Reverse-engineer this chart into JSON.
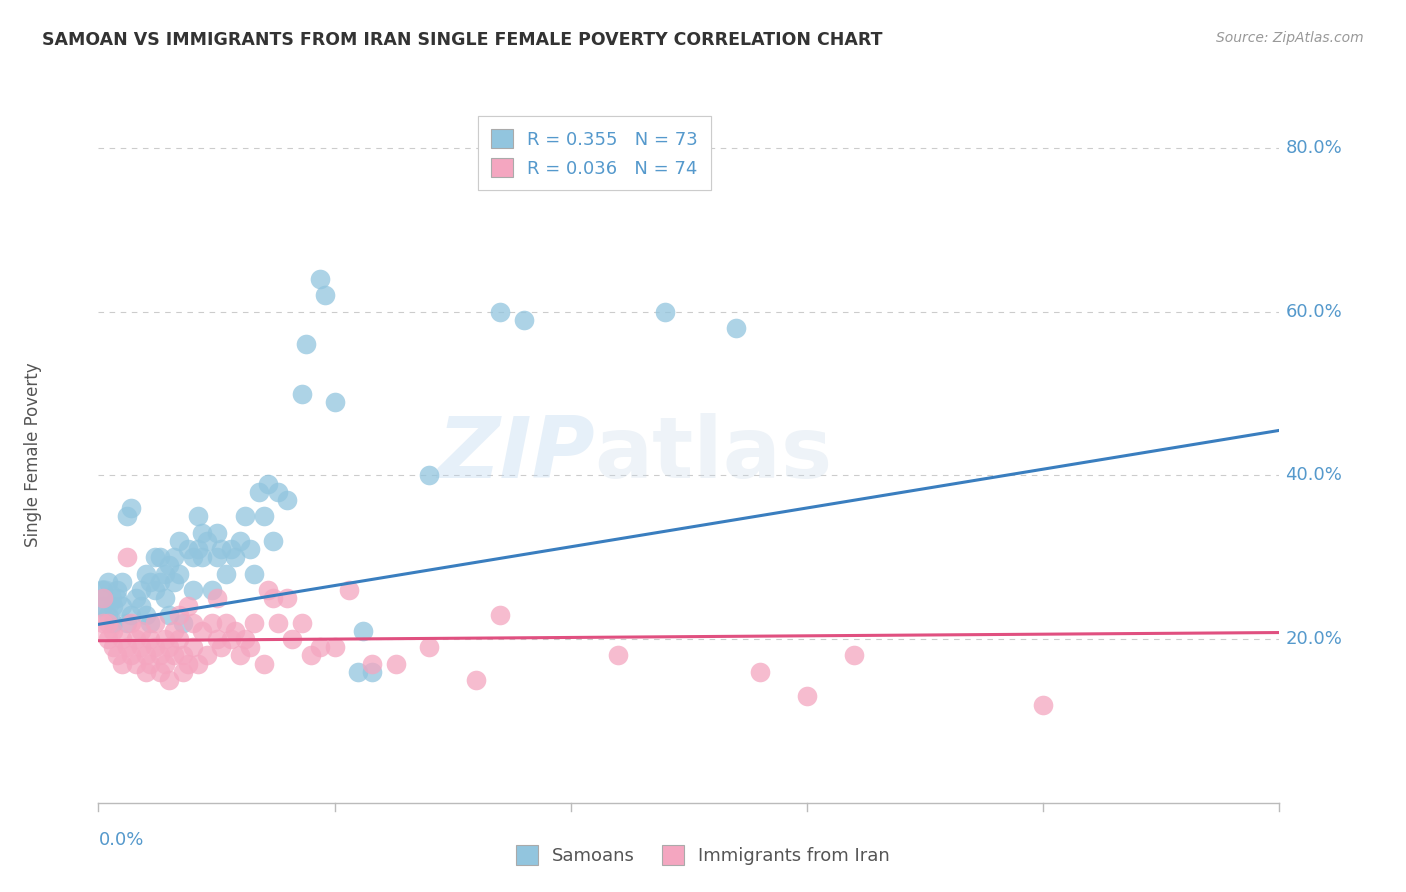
{
  "title": "SAMOAN VS IMMIGRANTS FROM IRAN SINGLE FEMALE POVERTY CORRELATION CHART",
  "source": "Source: ZipAtlas.com",
  "ylabel": "Single Female Poverty",
  "legend_samoans": "Samoans",
  "legend_iran": "Immigrants from Iran",
  "watermark_zip": "ZIP",
  "watermark_atlas": "atlas",
  "blue_color": "#92c5de",
  "pink_color": "#f4a6c0",
  "trendline_blue": "#3a7ebf",
  "trendline_pink": "#e05080",
  "background_color": "#ffffff",
  "grid_color": "#cccccc",
  "axis_label_color": "#5599cc",
  "title_color": "#333333",
  "source_color": "#999999",
  "xmin": 0.0,
  "xmax": 0.25,
  "ymin": 0.0,
  "ymax": 0.85,
  "blue_R": 0.355,
  "blue_N": 73,
  "pink_R": 0.036,
  "pink_N": 74,
  "blue_trendline_x": [
    0.0,
    0.25
  ],
  "blue_trendline_y": [
    0.218,
    0.455
  ],
  "pink_trendline_x": [
    0.0,
    0.25
  ],
  "pink_trendline_y": [
    0.198,
    0.208
  ],
  "blue_scatter": [
    [
      0.001,
      0.25
    ],
    [
      0.001,
      0.24
    ],
    [
      0.001,
      0.26
    ],
    [
      0.002,
      0.23
    ],
    [
      0.002,
      0.27
    ],
    [
      0.003,
      0.24
    ],
    [
      0.003,
      0.22
    ],
    [
      0.004,
      0.25
    ],
    [
      0.004,
      0.26
    ],
    [
      0.005,
      0.24
    ],
    [
      0.005,
      0.27
    ],
    [
      0.006,
      0.22
    ],
    [
      0.006,
      0.35
    ],
    [
      0.007,
      0.36
    ],
    [
      0.007,
      0.23
    ],
    [
      0.008,
      0.25
    ],
    [
      0.009,
      0.24
    ],
    [
      0.009,
      0.26
    ],
    [
      0.01,
      0.23
    ],
    [
      0.01,
      0.28
    ],
    [
      0.011,
      0.22
    ],
    [
      0.011,
      0.27
    ],
    [
      0.012,
      0.3
    ],
    [
      0.012,
      0.26
    ],
    [
      0.013,
      0.3
    ],
    [
      0.013,
      0.27
    ],
    [
      0.014,
      0.25
    ],
    [
      0.014,
      0.28
    ],
    [
      0.015,
      0.29
    ],
    [
      0.015,
      0.23
    ],
    [
      0.016,
      0.3
    ],
    [
      0.016,
      0.27
    ],
    [
      0.017,
      0.32
    ],
    [
      0.017,
      0.28
    ],
    [
      0.018,
      0.22
    ],
    [
      0.019,
      0.31
    ],
    [
      0.02,
      0.3
    ],
    [
      0.02,
      0.26
    ],
    [
      0.021,
      0.35
    ],
    [
      0.021,
      0.31
    ],
    [
      0.022,
      0.33
    ],
    [
      0.022,
      0.3
    ],
    [
      0.023,
      0.32
    ],
    [
      0.024,
      0.26
    ],
    [
      0.025,
      0.33
    ],
    [
      0.025,
      0.3
    ],
    [
      0.026,
      0.31
    ],
    [
      0.027,
      0.28
    ],
    [
      0.028,
      0.31
    ],
    [
      0.029,
      0.3
    ],
    [
      0.03,
      0.32
    ],
    [
      0.031,
      0.35
    ],
    [
      0.032,
      0.31
    ],
    [
      0.033,
      0.28
    ],
    [
      0.034,
      0.38
    ],
    [
      0.035,
      0.35
    ],
    [
      0.036,
      0.39
    ],
    [
      0.037,
      0.32
    ],
    [
      0.038,
      0.38
    ],
    [
      0.04,
      0.37
    ],
    [
      0.043,
      0.5
    ],
    [
      0.044,
      0.56
    ],
    [
      0.047,
      0.64
    ],
    [
      0.048,
      0.62
    ],
    [
      0.05,
      0.49
    ],
    [
      0.055,
      0.16
    ],
    [
      0.056,
      0.21
    ],
    [
      0.058,
      0.16
    ],
    [
      0.07,
      0.4
    ],
    [
      0.085,
      0.6
    ],
    [
      0.09,
      0.59
    ],
    [
      0.12,
      0.6
    ],
    [
      0.135,
      0.58
    ]
  ],
  "pink_scatter": [
    [
      0.001,
      0.25
    ],
    [
      0.002,
      0.22
    ],
    [
      0.002,
      0.2
    ],
    [
      0.003,
      0.19
    ],
    [
      0.003,
      0.21
    ],
    [
      0.004,
      0.18
    ],
    [
      0.005,
      0.17
    ],
    [
      0.005,
      0.2
    ],
    [
      0.006,
      0.19
    ],
    [
      0.006,
      0.3
    ],
    [
      0.007,
      0.22
    ],
    [
      0.007,
      0.18
    ],
    [
      0.008,
      0.2
    ],
    [
      0.008,
      0.17
    ],
    [
      0.009,
      0.21
    ],
    [
      0.009,
      0.19
    ],
    [
      0.01,
      0.16
    ],
    [
      0.01,
      0.18
    ],
    [
      0.011,
      0.2
    ],
    [
      0.011,
      0.17
    ],
    [
      0.012,
      0.19
    ],
    [
      0.012,
      0.22
    ],
    [
      0.013,
      0.18
    ],
    [
      0.013,
      0.16
    ],
    [
      0.014,
      0.2
    ],
    [
      0.014,
      0.17
    ],
    [
      0.015,
      0.15
    ],
    [
      0.015,
      0.19
    ],
    [
      0.016,
      0.21
    ],
    [
      0.016,
      0.18
    ],
    [
      0.017,
      0.2
    ],
    [
      0.017,
      0.23
    ],
    [
      0.018,
      0.18
    ],
    [
      0.018,
      0.16
    ],
    [
      0.019,
      0.17
    ],
    [
      0.019,
      0.24
    ],
    [
      0.02,
      0.22
    ],
    [
      0.02,
      0.19
    ],
    [
      0.021,
      0.17
    ],
    [
      0.022,
      0.21
    ],
    [
      0.023,
      0.18
    ],
    [
      0.024,
      0.22
    ],
    [
      0.025,
      0.2
    ],
    [
      0.025,
      0.25
    ],
    [
      0.026,
      0.19
    ],
    [
      0.027,
      0.22
    ],
    [
      0.028,
      0.2
    ],
    [
      0.029,
      0.21
    ],
    [
      0.03,
      0.18
    ],
    [
      0.031,
      0.2
    ],
    [
      0.032,
      0.19
    ],
    [
      0.033,
      0.22
    ],
    [
      0.035,
      0.17
    ],
    [
      0.036,
      0.26
    ],
    [
      0.037,
      0.25
    ],
    [
      0.038,
      0.22
    ],
    [
      0.04,
      0.25
    ],
    [
      0.041,
      0.2
    ],
    [
      0.043,
      0.22
    ],
    [
      0.045,
      0.18
    ],
    [
      0.047,
      0.19
    ],
    [
      0.05,
      0.19
    ],
    [
      0.053,
      0.26
    ],
    [
      0.058,
      0.17
    ],
    [
      0.063,
      0.17
    ],
    [
      0.07,
      0.19
    ],
    [
      0.08,
      0.15
    ],
    [
      0.085,
      0.23
    ],
    [
      0.11,
      0.18
    ],
    [
      0.14,
      0.16
    ],
    [
      0.15,
      0.13
    ],
    [
      0.16,
      0.18
    ],
    [
      0.2,
      0.12
    ],
    [
      0.001,
      0.22
    ]
  ]
}
